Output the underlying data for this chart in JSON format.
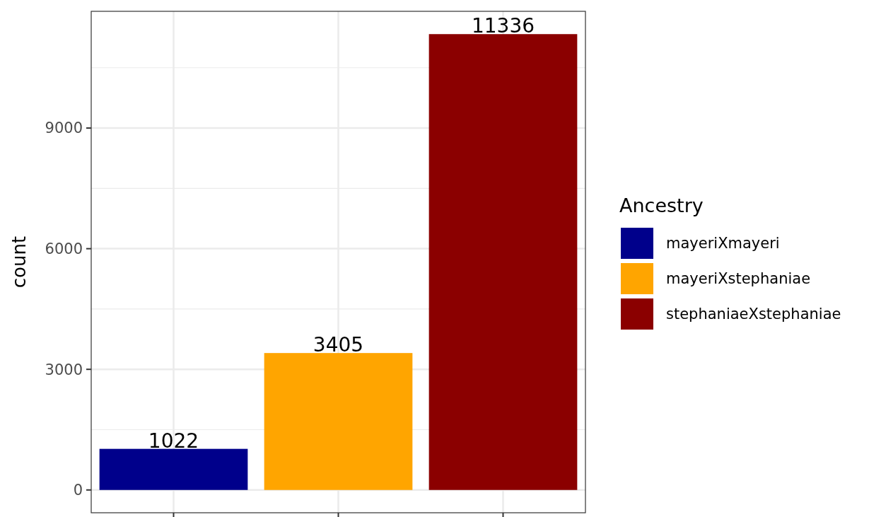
{
  "chart_data": {
    "type": "bar",
    "categories": [
      null,
      null,
      null
    ],
    "stacked": true,
    "series": [
      {
        "name": "mayeriXmayeri",
        "color": "#00008b",
        "values": [
          1022,
          null,
          null
        ]
      },
      {
        "name": "mayeriXstephaniae",
        "color": "#ffa500",
        "values": [
          null,
          3405,
          null
        ]
      },
      {
        "name": "stephaniaeXstephaniae",
        "color": "#8b0000",
        "values": [
          null,
          null,
          11336
        ]
      }
    ],
    "ylabel": "count",
    "legend_title": "Ancestry",
    "legend": "right",
    "ylim": [
      -567,
      11903
    ],
    "yticks": [
      0,
      3000,
      6000,
      9000
    ],
    "grid": true,
    "data_labels": true
  }
}
